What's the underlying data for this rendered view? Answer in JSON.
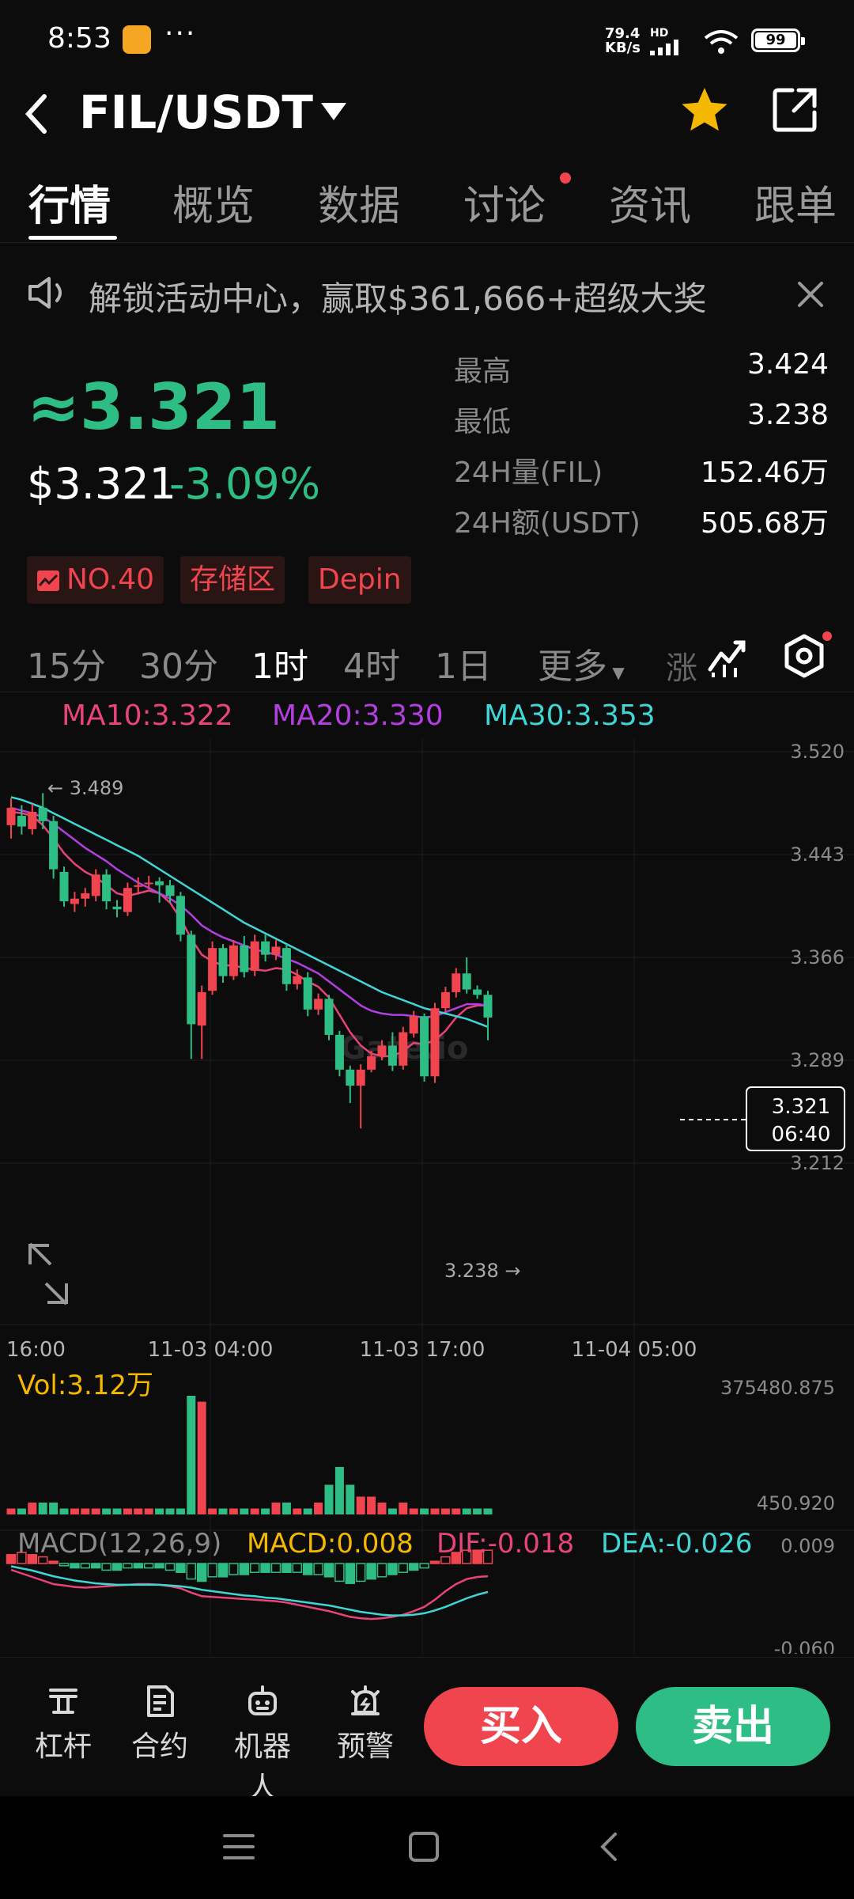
{
  "status_bar": {
    "time": "8:53",
    "dots": "···",
    "net_speed_value": "79.4",
    "net_speed_unit": "KB/s",
    "hd": "HD",
    "battery": "99"
  },
  "header": {
    "pair": "FIL/USDT",
    "icons": [
      "back-icon",
      "caret-down-icon",
      "star-icon",
      "share-icon"
    ],
    "star_color": "#f5b800"
  },
  "tabs": [
    {
      "label": "行情",
      "active": true
    },
    {
      "label": "概览"
    },
    {
      "label": "数据"
    },
    {
      "label": "讨论",
      "has_dot": true
    },
    {
      "label": "资讯"
    },
    {
      "label": "跟单"
    }
  ],
  "banner": {
    "text": "解锁活动中心，赢取$361,666+超级大奖"
  },
  "price": {
    "approx": "≈3.321",
    "usd": "$3.321",
    "change": "-3.09%",
    "color_down": "#2ebd85",
    "color_up": "#f0454f"
  },
  "stats": [
    {
      "label": "最高",
      "value": "3.424"
    },
    {
      "label": "最低",
      "value": "3.238"
    },
    {
      "label": "24H量(FIL)",
      "value": "152.46万"
    },
    {
      "label": "24H额(USDT)",
      "value": "505.68万"
    }
  ],
  "tags": [
    "NO.40",
    "存储区",
    "Depin"
  ],
  "intervals": [
    {
      "label": "15分"
    },
    {
      "label": "30分"
    },
    {
      "label": "1时",
      "active": true
    },
    {
      "label": "4时"
    },
    {
      "label": "1日"
    },
    {
      "label": "更多"
    }
  ],
  "interval_cut": "涨",
  "ma_legend": [
    {
      "text": "MA10:3.322",
      "color": "#e8437a"
    },
    {
      "text": "MA20:3.330",
      "color": "#b43fe0"
    },
    {
      "text": "MA30:3.353",
      "color": "#3fd6d6"
    }
  ],
  "chart_data": {
    "type": "candlestick",
    "y_ticks": [
      "3.520",
      "3.443",
      "3.366",
      "3.289",
      "3.212"
    ],
    "ylim": [
      3.212,
      3.52
    ],
    "x_ticks": [
      "16:00",
      "11-03 04:00",
      "11-03 17:00",
      "11-04 05:00"
    ],
    "high_label": "← 3.489",
    "low_label": "3.238 →",
    "current_price": "3.321",
    "countdown": "06:40",
    "watermark": "Gate.io",
    "candles": [
      [
        3.465,
        3.478,
        3.485,
        3.455
      ],
      [
        3.472,
        3.464,
        3.48,
        3.458
      ],
      [
        3.462,
        3.475,
        3.481,
        3.458
      ],
      [
        3.478,
        3.468,
        3.489,
        3.462
      ],
      [
        3.468,
        3.432,
        3.472,
        3.425
      ],
      [
        3.43,
        3.408,
        3.434,
        3.404
      ],
      [
        3.406,
        3.41,
        3.415,
        3.4
      ],
      [
        3.41,
        3.414,
        3.418,
        3.404
      ],
      [
        3.412,
        3.428,
        3.432,
        3.408
      ],
      [
        3.428,
        3.408,
        3.432,
        3.402
      ],
      [
        3.404,
        3.402,
        3.409,
        3.396
      ],
      [
        3.4,
        3.418,
        3.422,
        3.397
      ],
      [
        3.419,
        3.42,
        3.426,
        3.413
      ],
      [
        3.421,
        3.422,
        3.427,
        3.417
      ],
      [
        3.423,
        3.42,
        3.426,
        3.407
      ],
      [
        3.42,
        3.412,
        3.424,
        3.407
      ],
      [
        3.412,
        3.383,
        3.415,
        3.378
      ],
      [
        3.383,
        3.316,
        3.386,
        3.29
      ],
      [
        3.315,
        3.34,
        3.345,
        3.29
      ],
      [
        3.341,
        3.373,
        3.378,
        3.338
      ],
      [
        3.373,
        3.352,
        3.376,
        3.347
      ],
      [
        3.352,
        3.375,
        3.379,
        3.349
      ],
      [
        3.375,
        3.355,
        3.382,
        3.351
      ],
      [
        3.356,
        3.378,
        3.383,
        3.352
      ],
      [
        3.378,
        3.368,
        3.383,
        3.363
      ],
      [
        3.368,
        3.374,
        3.379,
        3.364
      ],
      [
        3.373,
        3.346,
        3.376,
        3.341
      ],
      [
        3.346,
        3.352,
        3.357,
        3.342
      ],
      [
        3.351,
        3.327,
        3.355,
        3.322
      ],
      [
        3.327,
        3.335,
        3.339,
        3.323
      ],
      [
        3.335,
        3.308,
        3.338,
        3.304
      ],
      [
        3.308,
        3.282,
        3.311,
        3.277
      ],
      [
        3.282,
        3.27,
        3.285,
        3.257
      ],
      [
        3.27,
        3.282,
        3.286,
        3.238
      ],
      [
        3.282,
        3.292,
        3.296,
        3.28
      ],
      [
        3.292,
        3.3,
        3.304,
        3.289
      ],
      [
        3.3,
        3.285,
        3.31,
        3.281
      ],
      [
        3.285,
        3.31,
        3.314,
        3.282
      ],
      [
        3.309,
        3.322,
        3.326,
        3.306
      ],
      [
        3.322,
        3.277,
        3.324,
        3.273
      ],
      [
        3.277,
        3.328,
        3.332,
        3.272
      ],
      [
        3.328,
        3.34,
        3.344,
        3.325
      ],
      [
        3.34,
        3.354,
        3.358,
        3.336
      ],
      [
        3.354,
        3.342,
        3.366,
        3.339
      ],
      [
        3.342,
        3.338,
        3.345,
        3.335
      ],
      [
        3.338,
        3.321,
        3.341,
        3.304
      ]
    ],
    "ma10": [
      3.475,
      3.474,
      3.472,
      3.465,
      3.455,
      3.444,
      3.436,
      3.43,
      3.426,
      3.42,
      3.414,
      3.412,
      3.414,
      3.416,
      3.414,
      3.407,
      3.395,
      3.38,
      3.368,
      3.363,
      3.36,
      3.36,
      3.358,
      3.357,
      3.356,
      3.358,
      3.357,
      3.353,
      3.348,
      3.344,
      3.336,
      3.323,
      3.31,
      3.3,
      3.294,
      3.292,
      3.292,
      3.296,
      3.302,
      3.301,
      3.304,
      3.311,
      3.321,
      3.328,
      3.33,
      3.33
    ],
    "ma20": [
      3.478,
      3.476,
      3.474,
      3.471,
      3.466,
      3.46,
      3.454,
      3.448,
      3.443,
      3.438,
      3.432,
      3.427,
      3.422,
      3.418,
      3.414,
      3.41,
      3.405,
      3.398,
      3.39,
      3.385,
      3.381,
      3.378,
      3.375,
      3.372,
      3.37,
      3.368,
      3.365,
      3.362,
      3.358,
      3.354,
      3.348,
      3.342,
      3.336,
      3.33,
      3.326,
      3.324,
      3.323,
      3.323,
      3.322,
      3.321,
      3.322,
      3.325,
      3.328,
      3.331,
      3.331,
      3.33
    ],
    "ma30": [
      3.486,
      3.484,
      3.481,
      3.478,
      3.474,
      3.47,
      3.466,
      3.462,
      3.458,
      3.454,
      3.45,
      3.446,
      3.442,
      3.437,
      3.432,
      3.427,
      3.422,
      3.417,
      3.412,
      3.407,
      3.402,
      3.397,
      3.392,
      3.388,
      3.384,
      3.38,
      3.376,
      3.372,
      3.368,
      3.364,
      3.36,
      3.356,
      3.352,
      3.348,
      3.344,
      3.34,
      3.337,
      3.334,
      3.331,
      3.328,
      3.326,
      3.324,
      3.322,
      3.32,
      3.317,
      3.314
    ],
    "volume": {
      "label": "Vol:3.12万",
      "max_label": "375480.875",
      "min_label": "450.920",
      "values": [
        1,
        1,
        2,
        2,
        2,
        1,
        1,
        1,
        1,
        1,
        1,
        1,
        1,
        1,
        1,
        1,
        1,
        20,
        19,
        1,
        1,
        1,
        1,
        1,
        1,
        2,
        2,
        1,
        1,
        2,
        5,
        8,
        5,
        3,
        3,
        2,
        1,
        2,
        1,
        1,
        1,
        1,
        1,
        1,
        1,
        1
      ]
    },
    "macd": {
      "label": "MACD(12,26,9)",
      "macd_text": "MACD:0.008",
      "dif_text": "DIF:-0.018",
      "dea_text": "DEA:-0.026",
      "top_label": "0.009",
      "bottom_label": "-0.060",
      "histogram": [
        0.4,
        0.5,
        0.4,
        0.3,
        0.1,
        -0.1,
        -0.2,
        -0.2,
        -0.2,
        -0.3,
        -0.3,
        -0.2,
        -0.2,
        -0.2,
        -0.2,
        -0.3,
        -0.4,
        -0.7,
        -0.8,
        -0.6,
        -0.6,
        -0.5,
        -0.5,
        -0.4,
        -0.4,
        -0.4,
        -0.4,
        -0.4,
        -0.5,
        -0.5,
        -0.6,
        -0.8,
        -0.9,
        -0.8,
        -0.7,
        -0.6,
        -0.5,
        -0.4,
        -0.3,
        -0.2,
        0.1,
        0.3,
        0.5,
        0.6,
        0.6,
        0.6
      ],
      "dif": [
        -0.2,
        -0.25,
        -0.3,
        -0.35,
        -0.4,
        -0.42,
        -0.44,
        -0.45,
        -0.44,
        -0.43,
        -0.42,
        -0.41,
        -0.4,
        -0.4,
        -0.41,
        -0.43,
        -0.46,
        -0.52,
        -0.57,
        -0.58,
        -0.59,
        -0.6,
        -0.61,
        -0.62,
        -0.63,
        -0.64,
        -0.66,
        -0.69,
        -0.72,
        -0.75,
        -0.78,
        -0.82,
        -0.86,
        -0.88,
        -0.89,
        -0.88,
        -0.86,
        -0.83,
        -0.78,
        -0.72,
        -0.62,
        -0.5,
        -0.4,
        -0.33,
        -0.3,
        -0.29
      ],
      "dea": [
        -0.15,
        -0.18,
        -0.21,
        -0.25,
        -0.29,
        -0.32,
        -0.35,
        -0.37,
        -0.39,
        -0.4,
        -0.41,
        -0.41,
        -0.41,
        -0.41,
        -0.41,
        -0.42,
        -0.43,
        -0.45,
        -0.48,
        -0.5,
        -0.52,
        -0.54,
        -0.56,
        -0.57,
        -0.59,
        -0.6,
        -0.62,
        -0.64,
        -0.66,
        -0.68,
        -0.7,
        -0.73,
        -0.76,
        -0.79,
        -0.81,
        -0.83,
        -0.84,
        -0.84,
        -0.83,
        -0.81,
        -0.77,
        -0.72,
        -0.66,
        -0.6,
        -0.55,
        -0.51
      ]
    }
  },
  "actions": [
    {
      "label": "杠杆",
      "icon": "leverage-icon"
    },
    {
      "label": "合约",
      "icon": "contract-icon"
    },
    {
      "label": "机器人",
      "icon": "robot-icon"
    },
    {
      "label": "预警",
      "icon": "alarm-icon"
    }
  ],
  "buy_label": "买入",
  "sell_label": "卖出",
  "colors": {
    "up": "#f0454f",
    "down": "#2ebd85",
    "bg": "#0c0c0d"
  }
}
